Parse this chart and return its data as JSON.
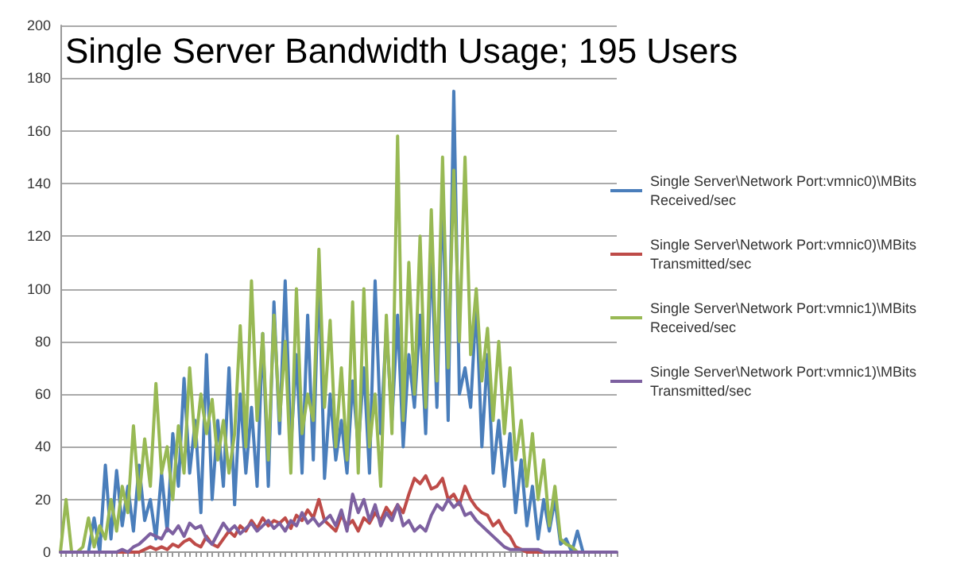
{
  "chart_data": {
    "type": "line",
    "title": "Single Server Bandwidth Usage; 195 Users",
    "categories": [
      null,
      null,
      null,
      null,
      null,
      null,
      null,
      null,
      null,
      null,
      null,
      null,
      null,
      null,
      null,
      null,
      null,
      null,
      null,
      null,
      null,
      null,
      null,
      null,
      null,
      null,
      null,
      null,
      null,
      null,
      null,
      null,
      null,
      null,
      null,
      null,
      null,
      null,
      null,
      null,
      null,
      null,
      null,
      null,
      null,
      null,
      null,
      null,
      null,
      null,
      null,
      null,
      null,
      null,
      null,
      null,
      null,
      null,
      null,
      null,
      null,
      null,
      null,
      null,
      null,
      null,
      null,
      null,
      null,
      null,
      null,
      null,
      null,
      null,
      null,
      null,
      null,
      null,
      null,
      null,
      null,
      null,
      null,
      null,
      null,
      null,
      null,
      null,
      null,
      null,
      null,
      null,
      null,
      null,
      null,
      null,
      null,
      null,
      null,
      null
    ],
    "series": [
      {
        "name": "Single Server\\Network Port:vmnic0)\\MBits Received/sec",
        "color": "#4a7ebb",
        "values": [
          null,
          null,
          null,
          0,
          0,
          0,
          13,
          0,
          33,
          5,
          31,
          10,
          25,
          8,
          33,
          12,
          20,
          5,
          30,
          8,
          45,
          25,
          66,
          30,
          50,
          15,
          75,
          20,
          50,
          25,
          70,
          18,
          60,
          30,
          55,
          25,
          83,
          25,
          95,
          45,
          103,
          40,
          75,
          30,
          90,
          35,
          107,
          28,
          60,
          35,
          50,
          30,
          65,
          40,
          70,
          30,
          103,
          45,
          85,
          50,
          90,
          40,
          75,
          55,
          90,
          45,
          115,
          55,
          140,
          50,
          175,
          60,
          70,
          55,
          95,
          40,
          75,
          30,
          50,
          25,
          45,
          15,
          35,
          10,
          25,
          5,
          20,
          8,
          20,
          3,
          5,
          0,
          8,
          0,
          0,
          0,
          null,
          null,
          null,
          null
        ]
      },
      {
        "name": "Single Server\\Network Port:vmnic0)\\MBits Transmitted/sec",
        "color": "#be4b48",
        "values": [
          null,
          null,
          null,
          null,
          null,
          null,
          null,
          null,
          0,
          0,
          0,
          0,
          0,
          0,
          0,
          1,
          2,
          1,
          2,
          1,
          3,
          2,
          4,
          5,
          3,
          2,
          6,
          3,
          2,
          5,
          8,
          6,
          10,
          8,
          12,
          9,
          13,
          10,
          12,
          11,
          13,
          9,
          14,
          12,
          16,
          13,
          20,
          12,
          10,
          8,
          14,
          10,
          12,
          8,
          13,
          11,
          15,
          12,
          17,
          14,
          18,
          15,
          22,
          28,
          26,
          29,
          24,
          25,
          28,
          20,
          22,
          18,
          25,
          20,
          17,
          15,
          14,
          10,
          12,
          8,
          6,
          2,
          1,
          0,
          0,
          0,
          0,
          0,
          0,
          null,
          null,
          null,
          null,
          null,
          null,
          null,
          null,
          null,
          null,
          null
        ]
      },
      {
        "name": "Single Server\\Network Port:vmnic1)\\MBits Received/sec",
        "color": "#98b954",
        "values": [
          0,
          20,
          0,
          0,
          2,
          13,
          2,
          10,
          5,
          20,
          8,
          25,
          15,
          48,
          20,
          43,
          25,
          64,
          30,
          40,
          20,
          48,
          30,
          70,
          40,
          60,
          45,
          58,
          35,
          50,
          30,
          45,
          86,
          40,
          103,
          50,
          83,
          35,
          90,
          50,
          80,
          30,
          100,
          45,
          60,
          50,
          115,
          55,
          88,
          40,
          70,
          35,
          95,
          30,
          100,
          40,
          60,
          25,
          90,
          45,
          158,
          50,
          110,
          60,
          120,
          55,
          130,
          65,
          150,
          70,
          145,
          80,
          150,
          75,
          100,
          65,
          85,
          50,
          80,
          45,
          70,
          35,
          50,
          25,
          45,
          20,
          35,
          10,
          25,
          5,
          3,
          2,
          0,
          0,
          0,
          null,
          null,
          null,
          null,
          null
        ]
      },
      {
        "name": "Single Server\\Network Port:vmnic1)\\MBits Transmitted/sec",
        "color": "#7d60a0",
        "values": [
          0,
          0,
          0,
          0,
          0,
          0,
          0,
          0,
          0,
          0,
          0,
          1,
          0,
          2,
          3,
          5,
          7,
          6,
          5,
          9,
          7,
          10,
          6,
          11,
          9,
          10,
          5,
          3,
          7,
          11,
          8,
          10,
          7,
          9,
          11,
          8,
          10,
          12,
          9,
          11,
          8,
          12,
          10,
          15,
          11,
          13,
          10,
          12,
          14,
          10,
          16,
          8,
          22,
          15,
          20,
          12,
          18,
          10,
          15,
          12,
          18,
          10,
          12,
          8,
          10,
          8,
          14,
          18,
          16,
          20,
          17,
          19,
          14,
          15,
          12,
          10,
          8,
          6,
          4,
          2,
          1,
          1,
          1,
          1,
          1,
          1,
          0,
          0,
          0,
          0,
          0,
          0,
          0,
          0,
          0,
          0,
          0,
          0,
          0,
          0
        ]
      }
    ],
    "ylim": [
      0,
      200
    ],
    "yticks": [
      0,
      20,
      40,
      60,
      80,
      100,
      120,
      140,
      160,
      180,
      200
    ],
    "grid": "y",
    "legend": "right",
    "tick_labels": "y",
    "marker": "none",
    "line_style": "solid"
  }
}
